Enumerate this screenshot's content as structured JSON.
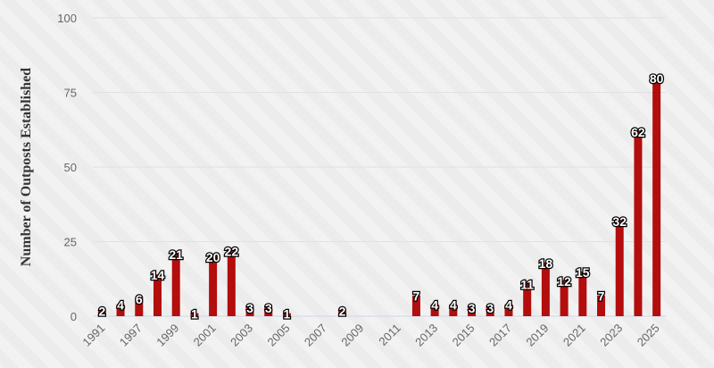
{
  "chart_data": {
    "type": "bar",
    "y_label": "Number of Outposts Established",
    "categories": [
      "1991",
      null,
      "1997",
      null,
      "1999",
      null,
      "2001",
      null,
      "2003",
      null,
      "2005",
      null,
      "2007",
      null,
      "2009",
      null,
      "2011",
      null,
      "2013",
      null,
      "2015",
      null,
      "2017",
      null,
      "2019",
      null,
      "2021",
      null,
      "2023",
      null,
      "2025"
    ],
    "values": [
      2,
      4,
      6,
      14,
      21,
      1,
      20,
      22,
      3,
      3,
      1,
      null,
      null,
      2,
      null,
      null,
      null,
      7,
      4,
      4,
      3,
      3,
      4,
      11,
      18,
      12,
      15,
      7,
      32,
      62,
      80
    ],
    "color": "#b30d0d",
    "ylim": [
      0,
      100
    ],
    "yticks": [
      0,
      25,
      50,
      75,
      100
    ],
    "grid": true
  }
}
